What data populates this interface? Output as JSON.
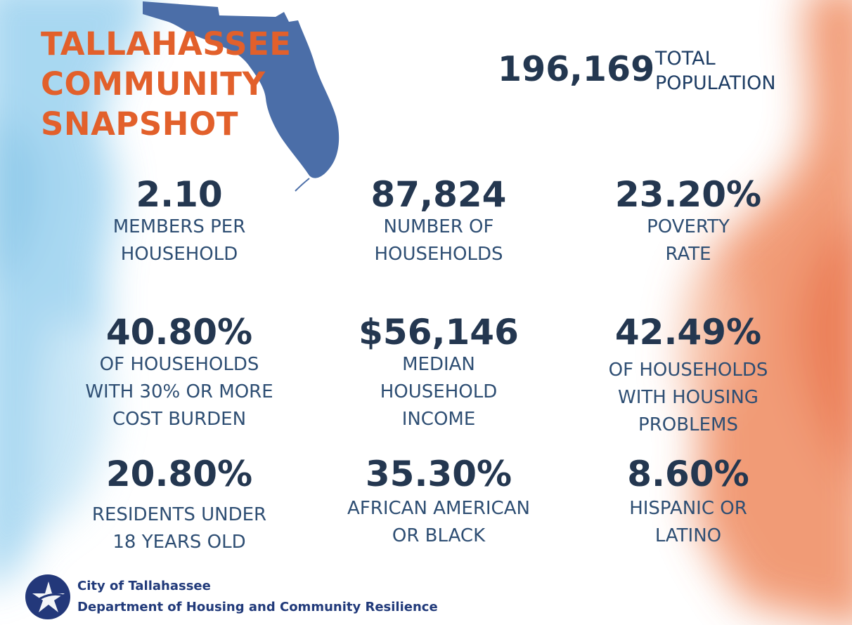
{
  "title_lines": [
    "TALLAHASSEE",
    "COMMUNITY",
    "SNAPSHOT"
  ],
  "population": {
    "value": "196,169",
    "label_lines": [
      "TOTAL",
      "POPULATION"
    ]
  },
  "stats": [
    {
      "value": "2.10",
      "label_lines": [
        "MEMBERS PER",
        "HOUSEHOLD"
      ]
    },
    {
      "value": "87,824",
      "label_lines": [
        "NUMBER OF",
        "HOUSEHOLDS"
      ]
    },
    {
      "value": "23.20%",
      "label_lines": [
        "POVERTY",
        "RATE"
      ]
    },
    {
      "value": "40.80%",
      "label_lines": [
        "OF HOUSEHOLDS",
        "WITH 30% OR MORE",
        "COST BURDEN"
      ]
    },
    {
      "value": "$56,146",
      "label_lines": [
        "MEDIAN",
        "HOUSEHOLD",
        "INCOME"
      ]
    },
    {
      "value": "42.49%",
      "label_lines": [
        "OF HOUSEHOLDS",
        "WITH HOUSING",
        "PROBLEMS"
      ]
    },
    {
      "value": "20.80%",
      "label_lines": [
        "RESIDENTS UNDER",
        "18 YEARS OLD"
      ]
    },
    {
      "value": "35.30%",
      "label_lines": [
        "AFRICAN AMERICAN",
        "OR BLACK"
      ]
    },
    {
      "value": "8.60%",
      "label_lines": [
        "HISPANIC OR",
        "LATINO"
      ]
    }
  ],
  "footer": {
    "lines": [
      "City of Tallahassee",
      "Department of Housing and Community Resilience"
    ]
  },
  "colors": {
    "title": "#e2602b",
    "numbers": "#243750",
    "labels": "#2e4e73",
    "florida_map": "#4b6ea8",
    "watercolor_blue": "#7cc3e8",
    "watercolor_orange": "#ec7a4c",
    "logo": "#23387a"
  },
  "icons": {
    "map": "florida-map-icon",
    "logo": "city-star-logo-icon"
  }
}
